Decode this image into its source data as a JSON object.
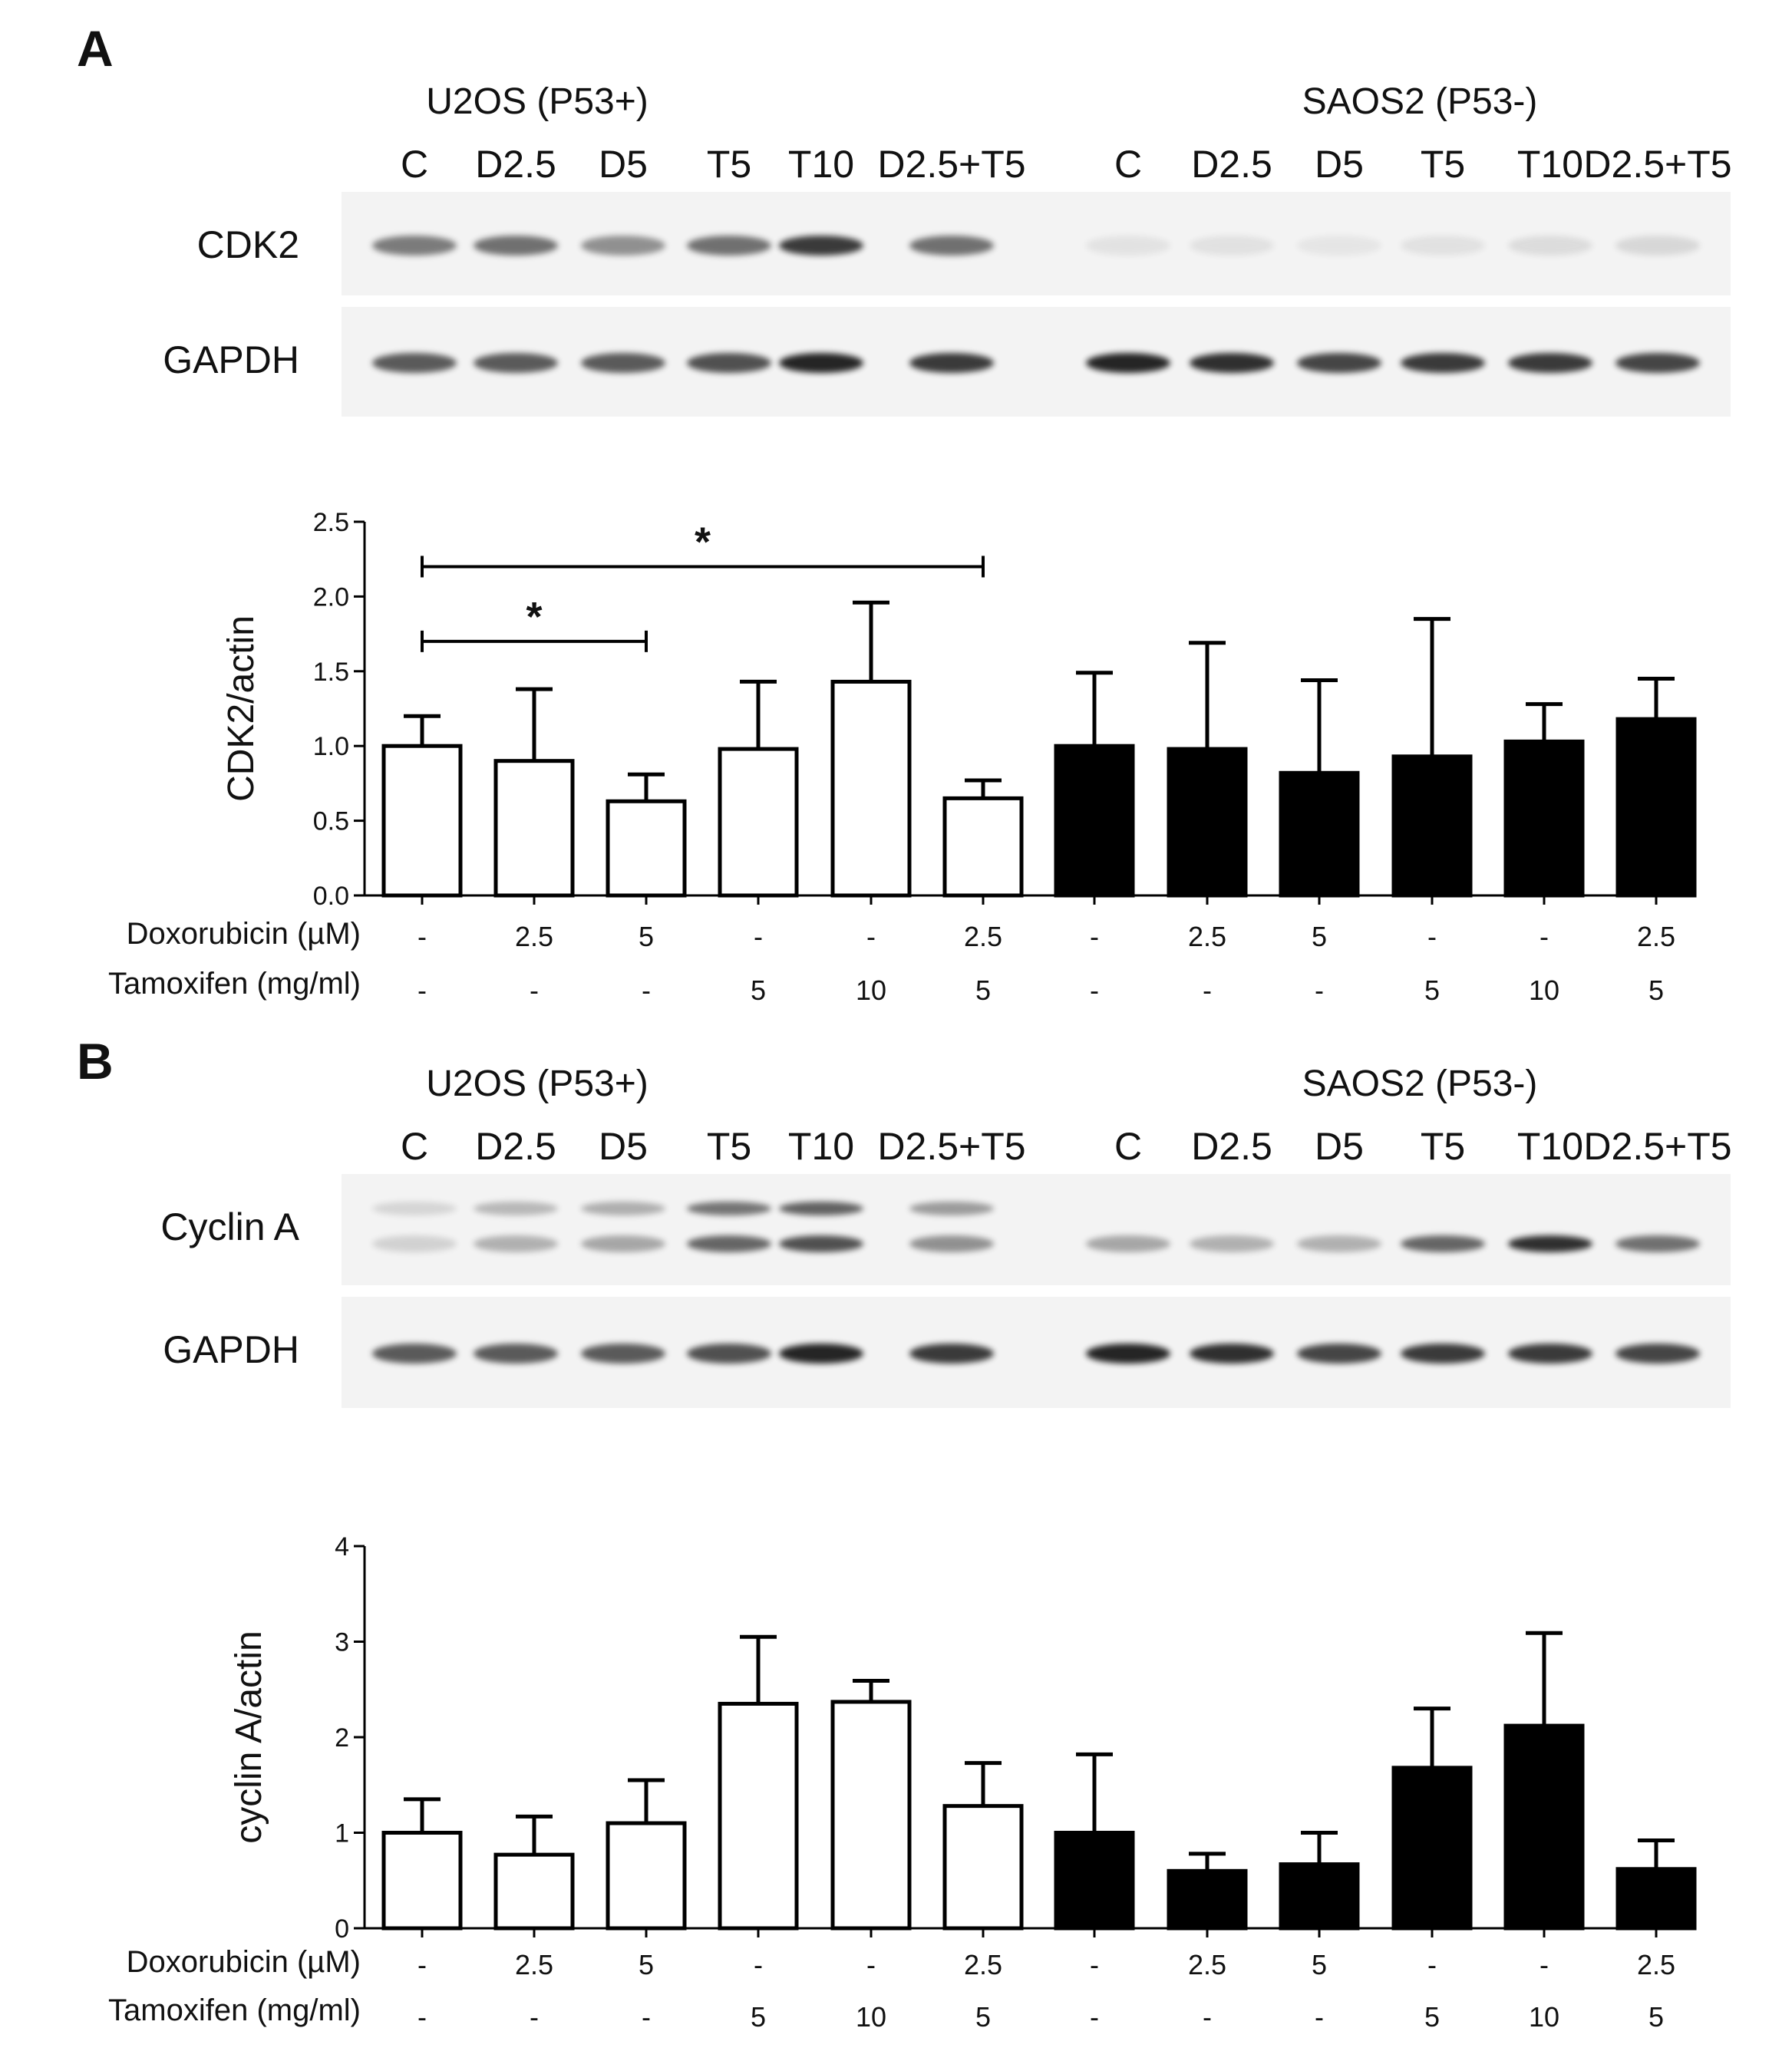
{
  "panels": [
    {
      "letter": "A",
      "cell_lines": [
        "U2OS (P53+)",
        "SAOS2 (P53-)"
      ],
      "lanes": [
        "C",
        "D2.5",
        "D5",
        "T5",
        "T10",
        "D2.5+T5",
        "C",
        "D2.5",
        "D5",
        "T5",
        "T10",
        "D2.5+T5"
      ],
      "blots": [
        {
          "protein": "CDK2",
          "intensity": [
            0.55,
            0.6,
            0.45,
            0.6,
            0.85,
            0.6,
            0.07,
            0.08,
            0.06,
            0.08,
            0.1,
            0.12
          ]
        },
        {
          "protein": "GAPDH",
          "intensity": [
            0.7,
            0.7,
            0.7,
            0.75,
            0.95,
            0.85,
            0.95,
            0.9,
            0.8,
            0.85,
            0.85,
            0.8
          ]
        }
      ],
      "rows": [
        {
          "label": "Doxorubicin (µM)",
          "values": [
            "-",
            "2.5",
            "5",
            "-",
            "-",
            "2.5",
            "-",
            "2.5",
            "5",
            "-",
            "-",
            "2.5"
          ]
        },
        {
          "label": "Tamoxifen (mg/ml)",
          "values": [
            "-",
            "-",
            "-",
            "5",
            "10",
            "5",
            "-",
            "-",
            "-",
            "5",
            "10",
            "5"
          ]
        }
      ]
    },
    {
      "letter": "B",
      "cell_lines": [
        "U2OS (P53+)",
        "SAOS2 (P53-)"
      ],
      "lanes": [
        "C",
        "D2.5",
        "D5",
        "T5",
        "T10",
        "D2.5+T5",
        "C",
        "D2.5",
        "D5",
        "T5",
        "T10",
        "D2.5+T5"
      ],
      "blots": [
        {
          "protein": "Cyclin A",
          "intensity": [
            0.15,
            0.3,
            0.35,
            0.65,
            0.75,
            0.45,
            0.35,
            0.3,
            0.3,
            0.65,
            0.9,
            0.6
          ]
        },
        {
          "protein": "GAPDH",
          "intensity": [
            0.7,
            0.7,
            0.7,
            0.75,
            0.95,
            0.85,
            0.95,
            0.9,
            0.8,
            0.85,
            0.85,
            0.8
          ]
        }
      ],
      "rows": [
        {
          "label": "Doxorubicin (µM)",
          "values": [
            "-",
            "2.5",
            "5",
            "-",
            "-",
            "2.5",
            "-",
            "2.5",
            "5",
            "-",
            "-",
            "2.5"
          ]
        },
        {
          "label": "Tamoxifen (mg/ml)",
          "values": [
            "-",
            "-",
            "-",
            "5",
            "10",
            "5",
            "-",
            "-",
            "-",
            "5",
            "10",
            "5"
          ]
        }
      ]
    }
  ],
  "chart_data": [
    {
      "type": "bar",
      "ylabel": "CDK2/actin",
      "ylim": [
        0,
        2.5
      ],
      "yticks": [
        "0.0",
        "0.5",
        "1.0",
        "1.5",
        "2.0",
        "2.5"
      ],
      "series": [
        {
          "values": [
            1.0,
            0.9,
            0.63,
            0.98,
            1.43,
            0.65
          ],
          "errors": [
            0.2,
            0.48,
            0.18,
            0.45,
            0.53,
            0.12
          ],
          "fill": "#ffffff"
        },
        {
          "values": [
            1.0,
            0.98,
            0.82,
            0.93,
            1.03,
            1.18
          ],
          "errors": [
            0.49,
            0.71,
            0.62,
            0.92,
            0.25,
            0.27
          ],
          "fill": "#000000"
        }
      ],
      "significance": [
        {
          "from": 0,
          "to": 2,
          "y": 1.7,
          "label": "*"
        },
        {
          "from": 0,
          "to": 5,
          "y": 2.2,
          "label": "*"
        }
      ]
    },
    {
      "type": "bar",
      "ylabel": "cyclin A/actin",
      "ylim": [
        0,
        4
      ],
      "yticks": [
        "0",
        "1",
        "2",
        "3",
        "4"
      ],
      "series": [
        {
          "values": [
            1.0,
            0.77,
            1.1,
            2.35,
            2.37,
            1.28
          ],
          "errors": [
            0.35,
            0.4,
            0.45,
            0.7,
            0.22,
            0.45
          ],
          "fill": "#ffffff"
        },
        {
          "values": [
            1.0,
            0.6,
            0.67,
            1.68,
            2.12,
            0.62
          ],
          "errors": [
            0.82,
            0.18,
            0.33,
            0.62,
            0.97,
            0.3
          ],
          "fill": "#000000"
        }
      ],
      "significance": []
    }
  ]
}
